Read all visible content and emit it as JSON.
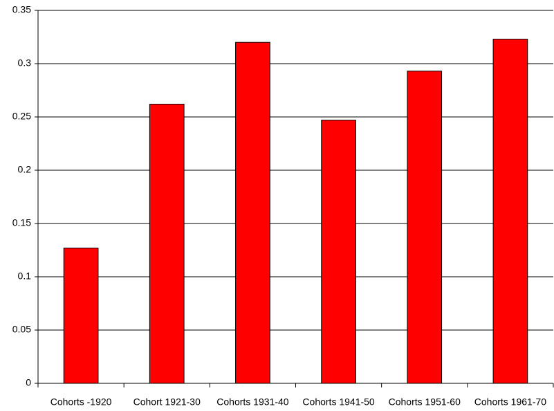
{
  "chart_data": {
    "type": "bar",
    "categories": [
      "Cohorts -1920",
      "Cohort 1921-30",
      "Cohorts 1931-40",
      "Cohorts 1941-50",
      "Cohorts 1951-60",
      "Cohorts 1961-70"
    ],
    "values": [
      0.127,
      0.262,
      0.32,
      0.247,
      0.293,
      0.323
    ],
    "color": "#ff0000",
    "ylim": [
      0,
      0.35
    ],
    "yticks": [
      0,
      0.05,
      0.1,
      0.15,
      0.2,
      0.25,
      0.3,
      0.35
    ],
    "grid": true
  }
}
